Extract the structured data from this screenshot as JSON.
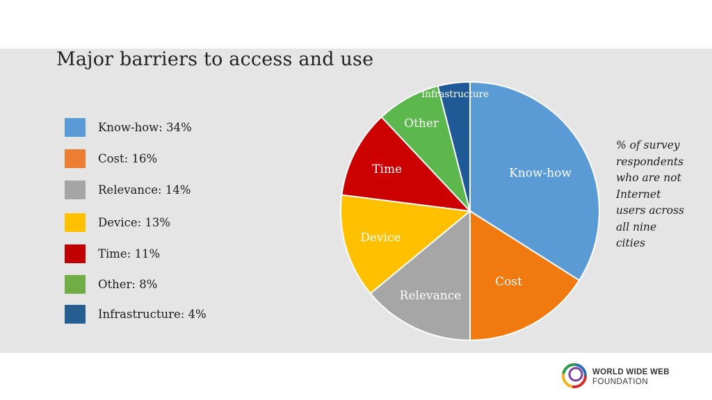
{
  "slide": {
    "title": "Major barriers to access and use",
    "note_lines": [
      "% of survey",
      "respondents",
      "who are not",
      "Internet",
      "users across",
      "all nine",
      "cities"
    ]
  },
  "legend": [
    {
      "label": "Know-how: 34%",
      "color": "#5b9bd5"
    },
    {
      "label": "Cost: 16%",
      "color": "#ed7d31"
    },
    {
      "label": "Relevance: 14%",
      "color": "#a5a5a5"
    },
    {
      "label": "Device: 13%",
      "color": "#ffc000"
    },
    {
      "label": "Time: 11%",
      "color": "#c00000"
    },
    {
      "label": "Other: 8%",
      "color": "#70ad47"
    },
    {
      "label": "Infrastructure: 4%",
      "color": "#255e91"
    }
  ],
  "logo": {
    "line1": "WORLD WIDE WEB",
    "line2": "FOUNDATION"
  },
  "chart_data": {
    "type": "pie",
    "title": "Major barriers to access and use",
    "categories": [
      "Know-how",
      "Cost",
      "Relevance",
      "Device",
      "Time",
      "Other",
      "Infrastructure"
    ],
    "values": [
      34,
      16,
      14,
      13,
      11,
      8,
      4
    ],
    "unit": "%",
    "colors": [
      "#5b9bd5",
      "#f07a10",
      "#a6a6a6",
      "#ffc000",
      "#cc0000",
      "#5cb84c",
      "#1f5a96"
    ],
    "slice_labels": [
      "Know-how",
      "Cost",
      "Relevance",
      "Device",
      "Time",
      "Other",
      "Infrastructure"
    ],
    "legend_position": "left"
  }
}
